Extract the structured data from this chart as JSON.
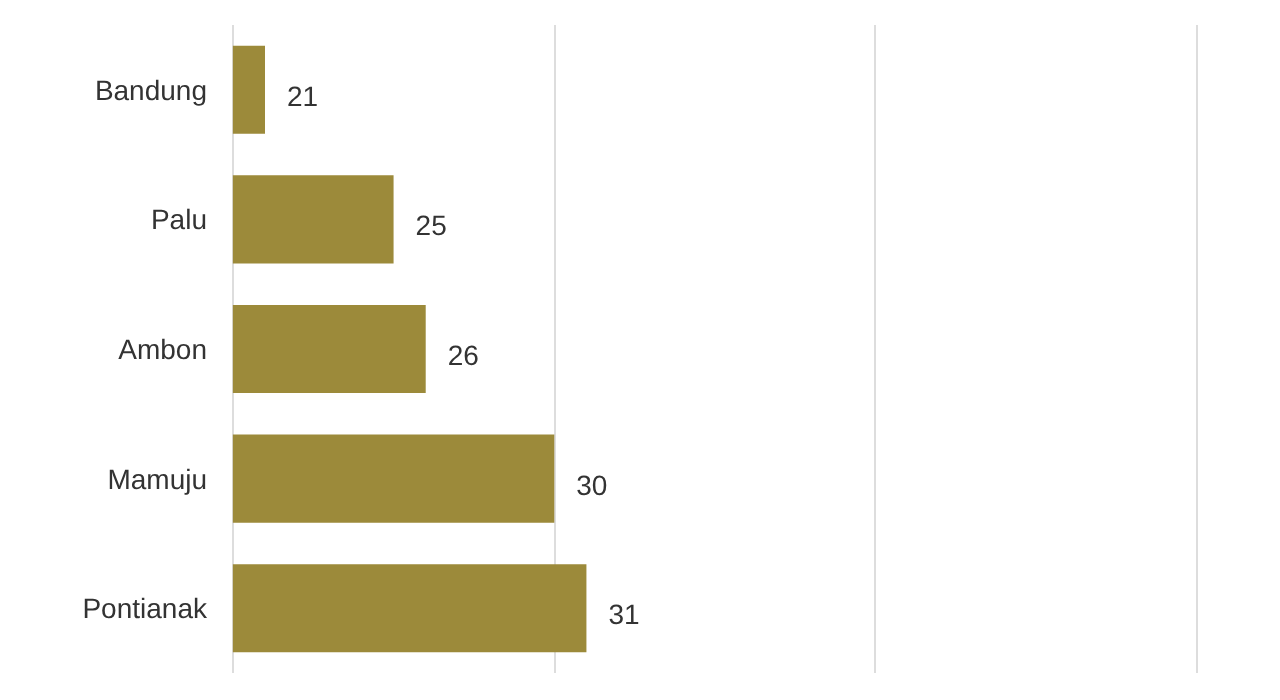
{
  "chart_data": {
    "type": "bar",
    "orientation": "horizontal",
    "categories": [
      "Bandung",
      "Palu",
      "Ambon",
      "Mamuju",
      "Pontianak"
    ],
    "values": [
      21,
      25,
      26,
      30,
      31
    ],
    "color": "#9c8a3a",
    "data_labels": true,
    "grid": "x",
    "tick_labels": "y",
    "xlim": [
      20,
      50
    ],
    "xticks": [
      {
        "value": 20,
        "label": null
      },
      {
        "value": 30,
        "label": null
      },
      {
        "value": 40,
        "label": null
      },
      {
        "value": 50,
        "label": null
      }
    ]
  }
}
